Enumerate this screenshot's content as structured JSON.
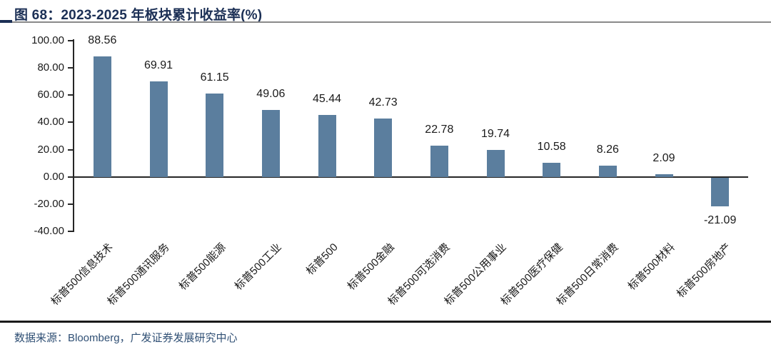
{
  "header": {
    "title": "图 68：2023-2025 年板块累计收益率(%)"
  },
  "chart_data": {
    "type": "bar",
    "title": "2023-2025 年板块累计收益率(%)",
    "categories": [
      "标普500信息技术",
      "标普500通讯服务",
      "标普500能源",
      "标普500工业",
      "标普500",
      "标普500金融",
      "标普500可选消费",
      "标普500公用事业",
      "标普500医疗保健",
      "标普500日常消费",
      "标普500材料",
      "标普500房地产"
    ],
    "values": [
      88.56,
      69.91,
      61.15,
      49.06,
      45.44,
      42.73,
      22.78,
      19.74,
      10.58,
      8.26,
      2.09,
      -21.09
    ],
    "value_labels": [
      "88.56",
      "69.91",
      "61.15",
      "49.06",
      "45.44",
      "42.73",
      "22.78",
      "19.74",
      "10.58",
      "8.26",
      "2.09",
      "-21.09"
    ],
    "xlabel": "",
    "ylabel": "",
    "ylim": [
      -40,
      100
    ],
    "ytick_labels": [
      "100.00",
      "80.00",
      "60.00",
      "40.00",
      "20.00",
      "0.00",
      "-20.00",
      "-40.00"
    ],
    "grid": false,
    "legend": false,
    "value_label_position": "outside-end",
    "x_label_rotation_deg": 45,
    "bar_color": "#5B7E9E"
  },
  "footer": {
    "source": "数据来源：Bloomberg，广发证券发展研究中心"
  },
  "colors": {
    "title_text": "#1B2F55",
    "accent_bar": "#1B2F55",
    "rule_gray": "#8a8a8a",
    "axis": "#262626",
    "label_text": "#1A1A1A",
    "source_rule": "#1a1a1a",
    "source_text": "#2F4F74",
    "bar": "#5B7E9E",
    "background": "#FFFFFF"
  }
}
